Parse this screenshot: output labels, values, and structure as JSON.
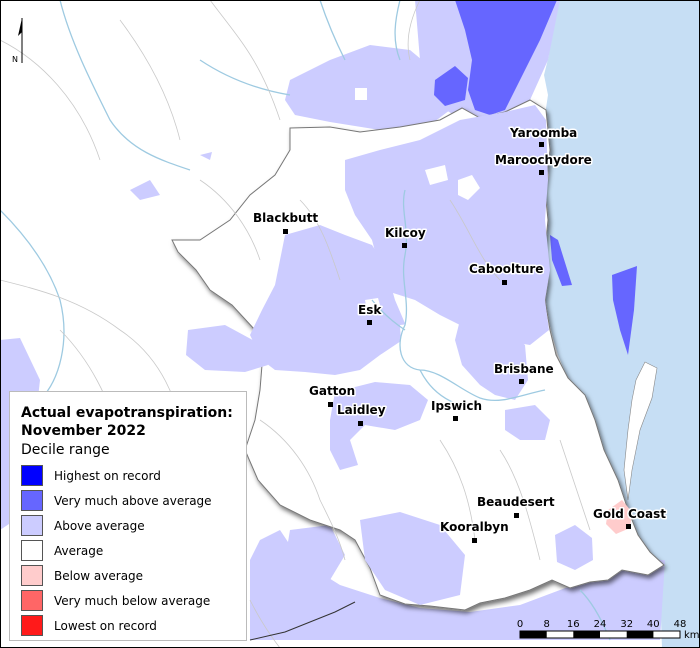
{
  "legend": {
    "title": "Actual evapotranspiration:\nNovember 2022",
    "subtitle": "Decile range",
    "items": [
      {
        "label": "Highest on record",
        "color": "#0000ff"
      },
      {
        "label": "Very much above average",
        "color": "#6666ff"
      },
      {
        "label": "Above average",
        "color": "#ccccff"
      },
      {
        "label": "Average",
        "color": "#ffffff"
      },
      {
        "label": "Below average",
        "color": "#ffcccc"
      },
      {
        "label": "Very much below average",
        "color": "#ff6666"
      },
      {
        "label": "Lowest on record",
        "color": "#ff1a1a"
      }
    ]
  },
  "towns": {
    "yaroomba": "Yaroomba",
    "maroochydore": "Maroochydore",
    "blackbutt": "Blackbutt",
    "kilcoy": "Kilcoy",
    "caboolture": "Caboolture",
    "esk": "Esk",
    "brisbane": "Brisbane",
    "gatton": "Gatton",
    "laidley": "Laidley",
    "ipswich": "Ipswich",
    "beaudesert": "Beaudesert",
    "gold_coast": "Gold Coast",
    "kooralbyn": "Kooralbyn"
  },
  "scale_bar": {
    "ticks": [
      "0",
      "8",
      "16",
      "24",
      "32",
      "40",
      "48"
    ],
    "unit": "km"
  },
  "north_arrow": {
    "label": "N",
    "icon": "north-arrow-icon"
  },
  "colors": {
    "ocean": "#c6def4",
    "river": "#9ecae1",
    "boundary": "#888888"
  }
}
